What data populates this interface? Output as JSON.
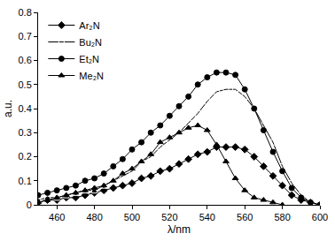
{
  "chart_data": {
    "type": "line",
    "x_label": "λ/nm",
    "y_label": "a.u.",
    "x": [
      450,
      455,
      460,
      465,
      470,
      475,
      480,
      485,
      490,
      495,
      500,
      505,
      510,
      515,
      520,
      525,
      530,
      535,
      540,
      545,
      550,
      555,
      560,
      565,
      570,
      575,
      580,
      585,
      590,
      595,
      600
    ],
    "series": [
      {
        "name": "Ar₂N",
        "color": "#000000",
        "marker": "diamond",
        "line_style": "solid",
        "values": [
          0.01,
          0.02,
          0.02,
          0.03,
          0.03,
          0.04,
          0.05,
          0.06,
          0.07,
          0.08,
          0.09,
          0.11,
          0.12,
          0.14,
          0.15,
          0.17,
          0.19,
          0.21,
          0.22,
          0.24,
          0.24,
          0.24,
          0.23,
          0.2,
          0.16,
          0.12,
          0.08,
          0.04,
          0.02,
          0.01,
          0.0
        ]
      },
      {
        "name": "Bu₂N",
        "color": "#000000",
        "marker": "square-open",
        "line_style": "solid",
        "values": [
          0.02,
          0.03,
          0.03,
          0.04,
          0.05,
          0.06,
          0.06,
          0.08,
          0.1,
          0.12,
          0.14,
          0.18,
          0.2,
          0.24,
          0.27,
          0.3,
          0.34,
          0.38,
          0.43,
          0.47,
          0.48,
          0.48,
          0.45,
          0.4,
          0.33,
          0.26,
          0.16,
          0.09,
          0.04,
          0.01,
          0.0
        ]
      },
      {
        "name": "Et₂N",
        "color": "#000000",
        "marker": "circle",
        "line_style": "solid",
        "values": [
          0.04,
          0.05,
          0.06,
          0.07,
          0.08,
          0.1,
          0.11,
          0.13,
          0.16,
          0.19,
          0.23,
          0.26,
          0.3,
          0.33,
          0.37,
          0.41,
          0.45,
          0.5,
          0.53,
          0.55,
          0.55,
          0.54,
          0.48,
          0.4,
          0.31,
          0.22,
          0.14,
          0.07,
          0.03,
          0.01,
          0.0
        ]
      },
      {
        "name": "Me₂N",
        "color": "#000000",
        "marker": "triangle-up",
        "line_style": "solid",
        "values": [
          0.01,
          0.02,
          0.03,
          0.04,
          0.05,
          0.06,
          0.07,
          0.08,
          0.1,
          0.13,
          0.15,
          0.18,
          0.21,
          0.26,
          0.28,
          0.3,
          0.32,
          0.33,
          0.31,
          0.25,
          0.18,
          0.11,
          0.06,
          0.03,
          0.02,
          0.01,
          0.0,
          null,
          null,
          null,
          null
        ]
      }
    ],
    "xlim": [
      450,
      600
    ],
    "xticks": [
      460,
      480,
      500,
      520,
      540,
      560,
      580,
      600
    ],
    "ylim": [
      0,
      0.8
    ],
    "yticks": [
      0,
      0.1,
      0.2,
      0.3,
      0.4,
      0.5,
      0.6,
      0.7,
      0.8
    ],
    "grid": false,
    "legend": "top-left"
  }
}
